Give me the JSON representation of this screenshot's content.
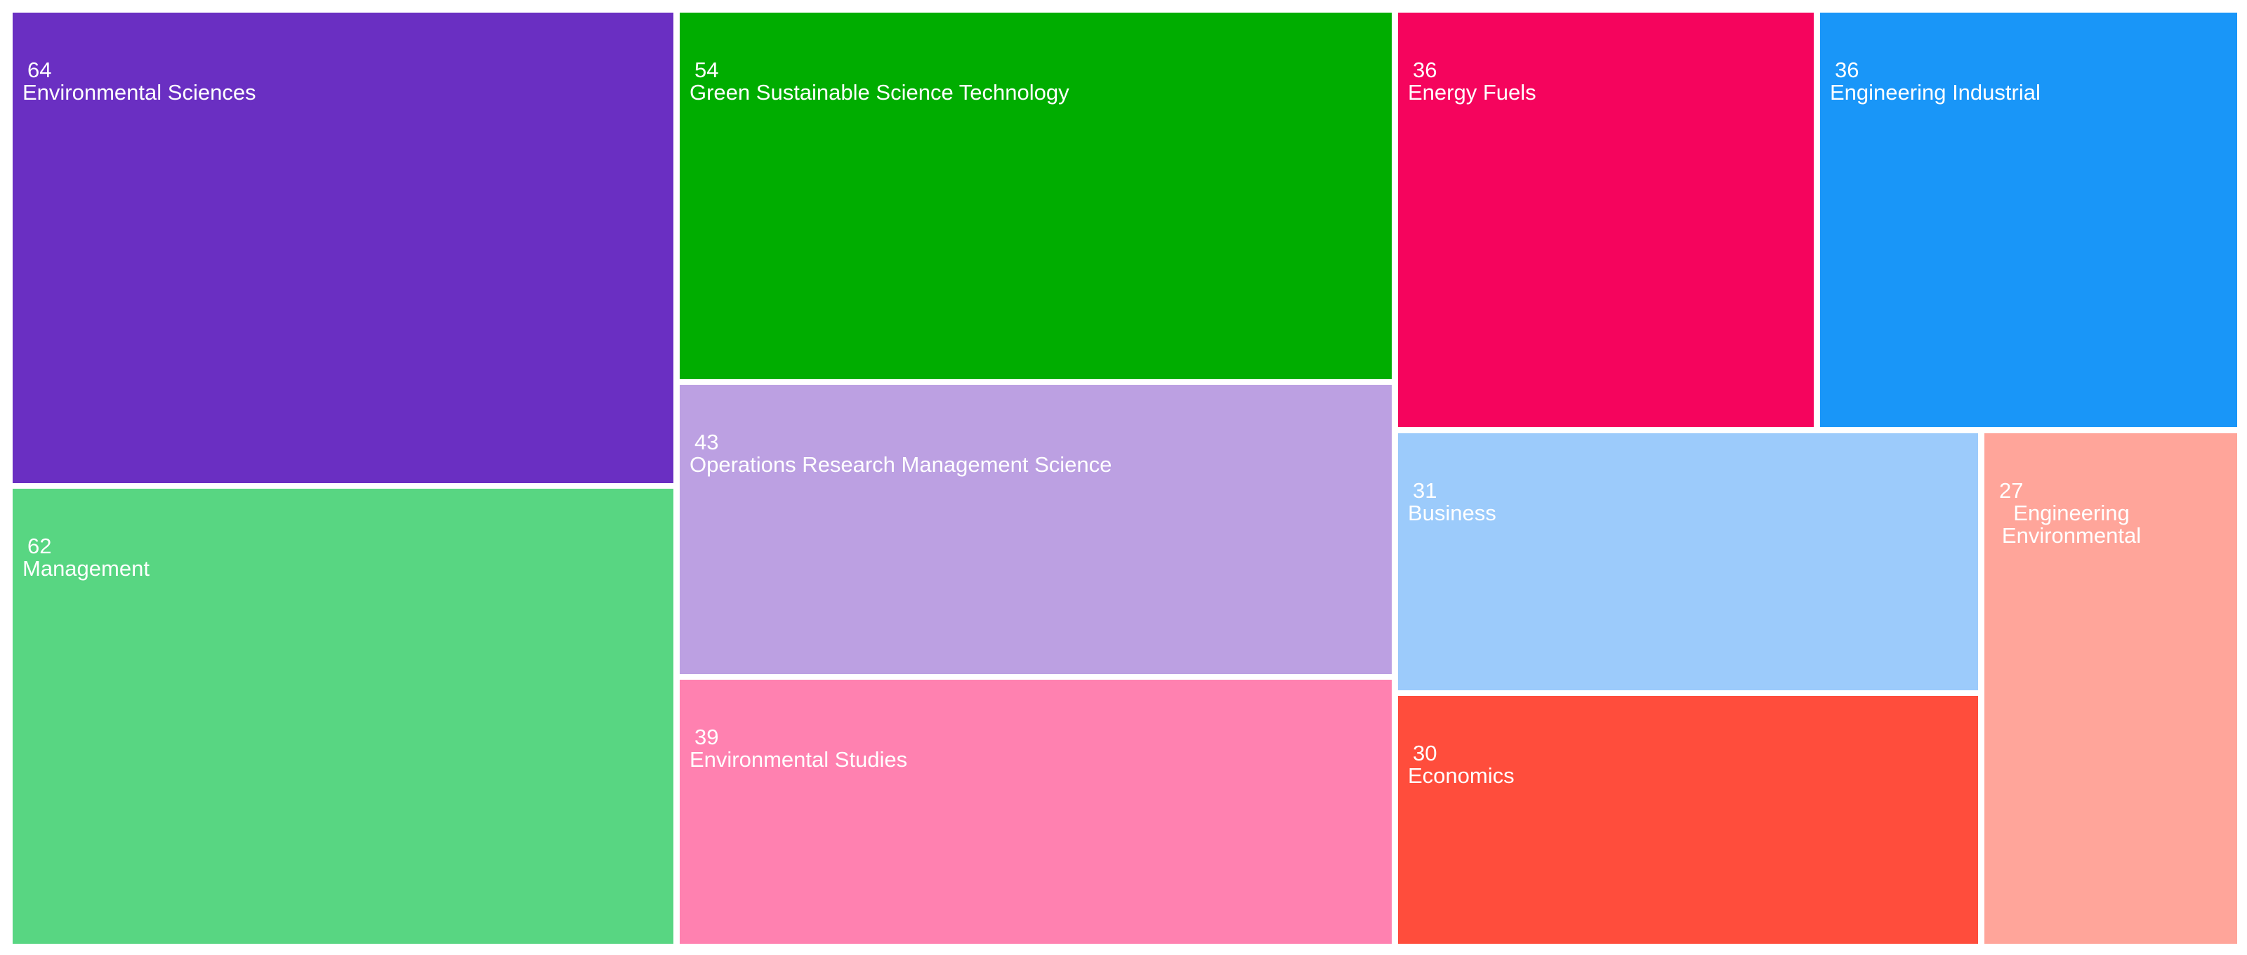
{
  "chart_data": {
    "type": "treemap",
    "items": [
      {
        "label": "Environmental Sciences",
        "value": 64,
        "color": "#6a2fc2"
      },
      {
        "label": "Management",
        "value": 62,
        "color": "#58d682"
      },
      {
        "label": "Green Sustainable Science Technology",
        "value": 54,
        "color": "#00ad00"
      },
      {
        "label": "Operations Research Management Science",
        "value": 43,
        "color": "#bca0e2"
      },
      {
        "label": "Environmental Studies",
        "value": 39,
        "color": "#ff81b0"
      },
      {
        "label": "Energy Fuels",
        "value": 36,
        "color": "#f5045d"
      },
      {
        "label": "Engineering Industrial",
        "value": 36,
        "color": "#1996f8"
      },
      {
        "label": "Business",
        "value": 31,
        "color": "#9ccbfb"
      },
      {
        "label": "Economics",
        "value": 30,
        "color": "#ff4d3c"
      },
      {
        "label": "Engineering Environmental",
        "value": 27,
        "color": "#ffa59a"
      }
    ]
  }
}
